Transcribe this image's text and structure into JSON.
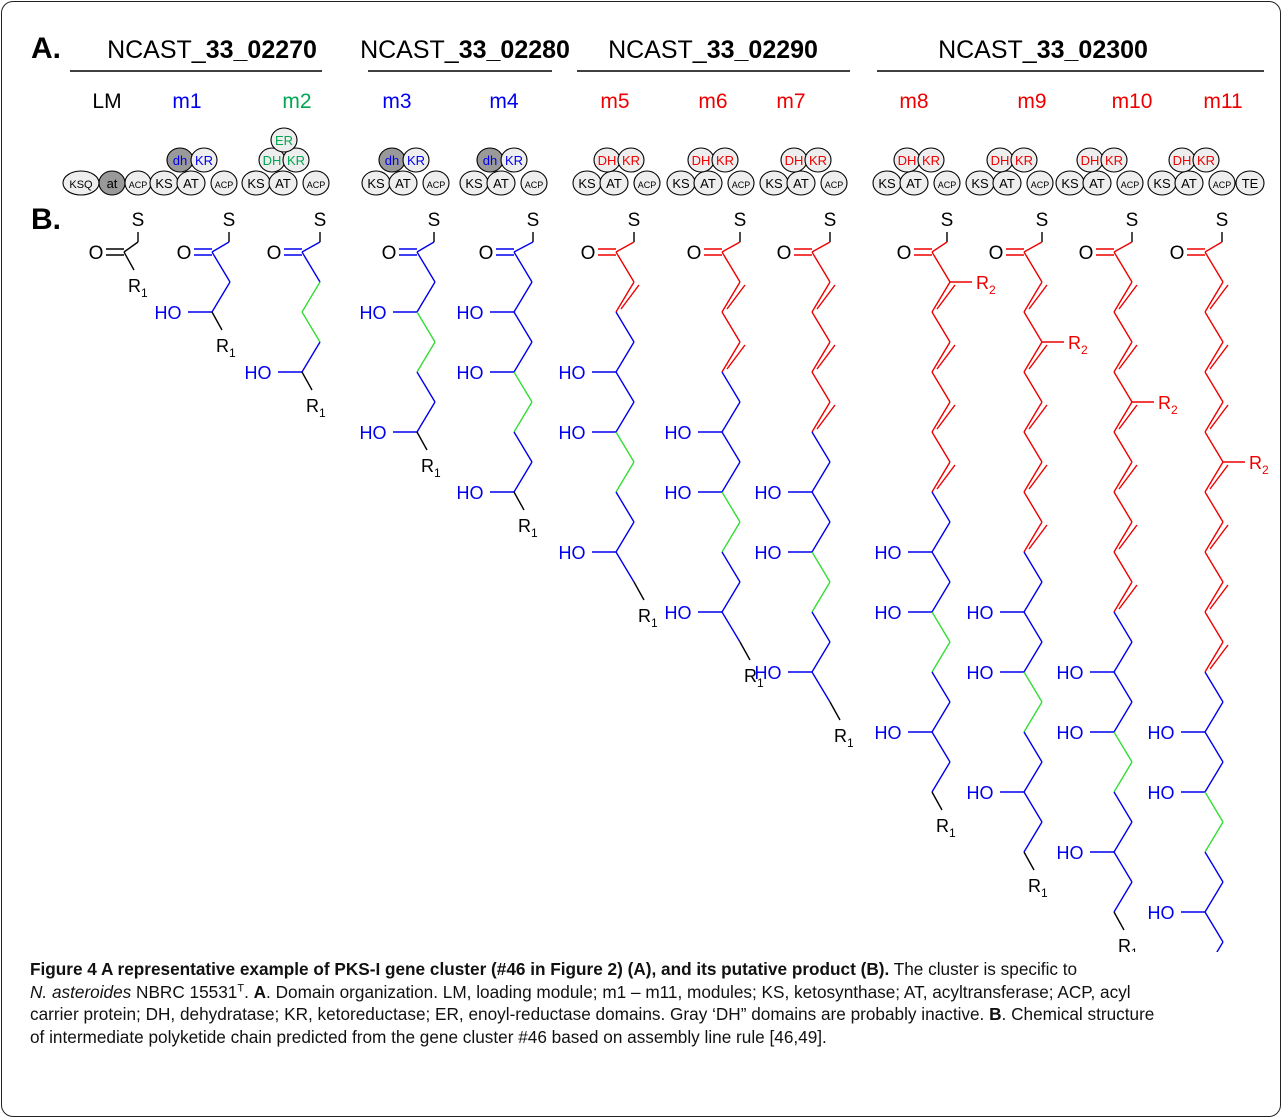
{
  "panels": {
    "a": "A.",
    "b": "B."
  },
  "genes": [
    {
      "prefix": "NCAST_",
      "bold": "33_02270"
    },
    {
      "prefix": "NCAST_",
      "bold": "33_02280"
    },
    {
      "prefix": "NCAST_",
      "bold": "33_02290"
    },
    {
      "prefix": "NCAST_",
      "bold": "33_02300"
    }
  ],
  "modules": [
    "LM",
    "m1",
    "m2",
    "m3",
    "m4",
    "m5",
    "m6",
    "m7",
    "m8",
    "m9",
    "m10",
    "m11"
  ],
  "colors": {
    "lm": "#000000",
    "blue": "#0000ee",
    "green": "#00a651",
    "red": "#ee0000",
    "bond_green": "#33dd33",
    "domain_fill": "#eeeeee",
    "inactive_fill": "#999999"
  },
  "domains": {
    "ksq": "KSQ",
    "at_inactive": "at",
    "acp": "ACP",
    "ks": "KS",
    "at": "AT",
    "dh_inactive": "dh",
    "dh": "DH",
    "kr": "KR",
    "er": "ER",
    "te": "TE"
  },
  "chem": {
    "s": "S",
    "o": "O",
    "ho": "HO",
    "r": "R",
    "sub1": "1",
    "sub2": "2"
  },
  "caption": {
    "title": "Figure 4 A representative example of PKS-I gene cluster (#46 in Figure 2) (A), and its putative product (B).",
    "l1_tail": "The cluster is specific to",
    "l2_organism": "N. asteroides",
    "l2_strain": "NBRC 15531",
    "l2_sup": "T",
    "l2_a": "A",
    "l2_text": ". Domain organization. LM, loading module; m1 – m11, modules; KS, ketosynthase; AT, acyltransferase; ACP, acyl",
    "l3": "carrier protein; DH, dehydratase; KR, ketoreductase; ER, enoyl-reductase domains. Gray ‘DH” domains are probably inactive.",
    "l3_b": "B",
    "l3_tail": ". Chemical structure",
    "l4": "of intermediate polyketide chain predicted from the gene cluster #46 based on assembly line rule [46,49]."
  }
}
